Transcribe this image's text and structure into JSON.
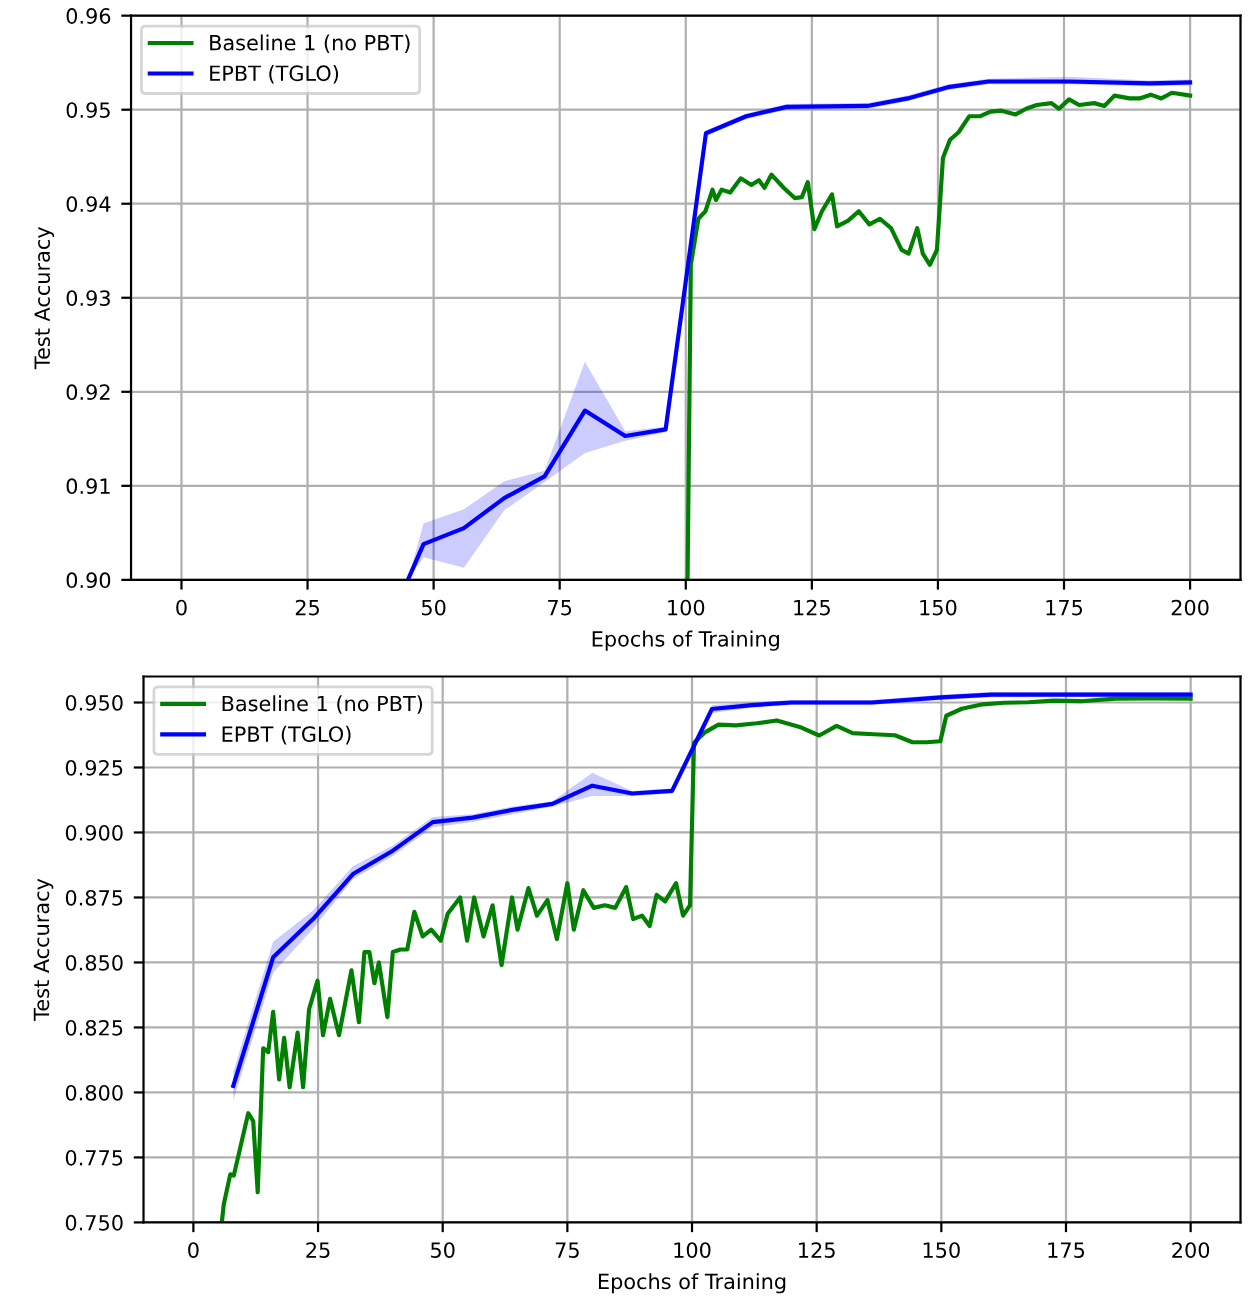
{
  "chart_data": [
    {
      "type": "line",
      "xlabel": "Epochs of Training",
      "ylabel": "Test Accuracy",
      "xlim": [
        -10,
        210
      ],
      "ylim": [
        0.9,
        0.96
      ],
      "xticks": [
        0,
        25,
        50,
        75,
        100,
        125,
        150,
        175,
        200
      ],
      "yticks": [
        {
          "value": 0.9,
          "label": "0.90"
        },
        {
          "value": 0.91,
          "label": "0.91"
        },
        {
          "value": 0.92,
          "label": "0.92"
        },
        {
          "value": 0.93,
          "label": "0.93"
        },
        {
          "value": 0.94,
          "label": "0.94"
        },
        {
          "value": 0.95,
          "label": "0.95"
        },
        {
          "value": 0.96,
          "label": "0.96"
        }
      ],
      "grid": true,
      "legend": "top left",
      "line_style": "solid",
      "marker": "none",
      "series": [
        {
          "name": "Baseline 1 (no PBT)",
          "color": "#008000",
          "x": [
            100.35,
            101,
            102.5,
            103.9,
            105.3,
            106,
            107.1,
            108.8,
            110.9,
            113,
            114.5,
            115.6,
            117,
            119.4,
            121.6,
            123,
            124.2,
            125.5,
            127,
            129,
            130,
            132.2,
            134.3,
            136.4,
            138.5,
            140.7,
            142.8,
            144.2,
            145.9,
            147,
            148.4,
            149.8,
            151,
            152.4,
            154.1,
            156.2,
            158.3,
            160.4,
            162.6,
            165.4,
            167.5,
            169.6,
            172.5,
            174,
            176,
            178,
            181,
            183,
            185,
            188,
            190,
            192.2,
            194.3,
            196.4,
            200
          ],
          "values": [
            0.9,
            0.9335,
            0.9384,
            0.9392,
            0.9415,
            0.9404,
            0.9415,
            0.9412,
            0.9427,
            0.942,
            0.9425,
            0.9417,
            0.9431,
            0.9417,
            0.9406,
            0.9407,
            0.9423,
            0.9373,
            0.9392,
            0.941,
            0.9376,
            0.9382,
            0.9392,
            0.9378,
            0.9384,
            0.9374,
            0.9351,
            0.9347,
            0.9374,
            0.9347,
            0.9335,
            0.9351,
            0.9449,
            0.9468,
            0.9476,
            0.9493,
            0.9493,
            0.9498,
            0.9499,
            0.9495,
            0.9501,
            0.9505,
            0.9507,
            0.9501,
            0.9511,
            0.9505,
            0.9507,
            0.9504,
            0.9515,
            0.9512,
            0.9512,
            0.9516,
            0.9512,
            0.9518,
            0.9515
          ]
        },
        {
          "name": "EPBT (TGLO)",
          "color": "#0000ff",
          "x": [
            44.9,
            48,
            56,
            64,
            72,
            80,
            88,
            96,
            104,
            112,
            120,
            136,
            144,
            152,
            160,
            176,
            192,
            200
          ],
          "values": [
            0.9,
            0.9038,
            0.9055,
            0.9087,
            0.911,
            0.918,
            0.9153,
            0.916,
            0.9475,
            0.9493,
            0.9503,
            0.9504,
            0.9512,
            0.9524,
            0.953,
            0.953,
            0.9528,
            0.9529
          ],
          "lower": [
            0.9,
            0.9024,
            0.9013,
            0.9074,
            0.9104,
            0.9135,
            0.9148,
            0.9157,
            0.9472,
            0.949,
            0.95,
            0.9501,
            0.9509,
            0.9521,
            0.9527,
            0.9527,
            0.9525,
            0.9526
          ],
          "upper": [
            0.9,
            0.906,
            0.9075,
            0.9105,
            0.9116,
            0.9232,
            0.9158,
            0.9163,
            0.9478,
            0.9496,
            0.9506,
            0.9507,
            0.9515,
            0.9527,
            0.9533,
            0.9535,
            0.9531,
            0.9532
          ]
        }
      ]
    },
    {
      "type": "line",
      "xlabel": "Epochs of Training",
      "ylabel": "Test Accuracy",
      "xlim": [
        -10,
        210
      ],
      "ylim": [
        0.75,
        0.96
      ],
      "xticks": [
        0,
        25,
        50,
        75,
        100,
        125,
        150,
        175,
        200
      ],
      "yticks": [
        {
          "value": 0.75,
          "label": "0.750"
        },
        {
          "value": 0.775,
          "label": "0.775"
        },
        {
          "value": 0.8,
          "label": "0.800"
        },
        {
          "value": 0.825,
          "label": "0.825"
        },
        {
          "value": 0.85,
          "label": "0.850"
        },
        {
          "value": 0.875,
          "label": "0.875"
        },
        {
          "value": 0.9,
          "label": "0.900"
        },
        {
          "value": 0.925,
          "label": "0.925"
        },
        {
          "value": 0.95,
          "label": "0.950"
        }
      ],
      "grid": true,
      "legend": "top left",
      "line_style": "solid",
      "marker": "none",
      "series": [
        {
          "name": "Baseline 1 (no PBT)",
          "color": "#008000",
          "x": [
            5.7,
            6.1,
            7.4,
            8.1,
            11,
            12,
            12.9,
            14,
            15,
            16,
            17.2,
            18.2,
            19.3,
            20.9,
            22,
            23.2,
            24.9,
            26,
            27.4,
            29.2,
            31.7,
            33.2,
            34.3,
            35.3,
            36.3,
            37.2,
            38.9,
            40,
            41.5,
            42.9,
            44.3,
            46,
            47.7,
            49.6,
            51,
            53.5,
            54.9,
            56.3,
            58.2,
            60,
            61.8,
            63.9,
            65,
            67.2,
            68.9,
            71,
            72.9,
            75,
            76.3,
            78.2,
            80.3,
            82.5,
            84.6,
            86.8,
            88.2,
            90,
            91.5,
            92.9,
            94.6,
            96.8,
            98.2,
            99.6,
            100.4,
            102.5,
            105.3,
            108.8,
            113,
            117,
            121.6,
            125.5,
            129,
            132.2,
            136.4,
            140.7,
            144.2,
            147,
            149.8,
            151,
            154.1,
            158.3,
            162.6,
            167.5,
            172.5,
            178,
            185,
            192.2,
            200
          ],
          "values": [
            0.75,
            0.757,
            0.7685,
            0.768,
            0.792,
            0.789,
            0.7616,
            0.817,
            0.8155,
            0.831,
            0.805,
            0.821,
            0.802,
            0.823,
            0.802,
            0.832,
            0.843,
            0.822,
            0.836,
            0.822,
            0.847,
            0.827,
            0.854,
            0.854,
            0.842,
            0.85,
            0.829,
            0.854,
            0.855,
            0.855,
            0.8695,
            0.86,
            0.8626,
            0.8584,
            0.8687,
            0.875,
            0.8584,
            0.875,
            0.86,
            0.872,
            0.849,
            0.875,
            0.8626,
            0.8786,
            0.868,
            0.874,
            0.859,
            0.8805,
            0.8626,
            0.8778,
            0.871,
            0.872,
            0.871,
            0.879,
            0.8667,
            0.868,
            0.864,
            0.876,
            0.8735,
            0.8805,
            0.868,
            0.872,
            0.9345,
            0.9384,
            0.9415,
            0.9412,
            0.942,
            0.9431,
            0.9406,
            0.9373,
            0.941,
            0.9382,
            0.9378,
            0.9374,
            0.9347,
            0.9347,
            0.9351,
            0.9449,
            0.9476,
            0.9493,
            0.9499,
            0.9501,
            0.9507,
            0.9505,
            0.9515,
            0.9516,
            0.9515
          ]
        },
        {
          "name": "EPBT (TGLO)",
          "color": "#0000ff",
          "x": [
            8,
            16,
            24,
            32,
            40,
            48,
            56,
            64,
            72,
            80,
            88,
            96,
            104,
            112,
            120,
            136,
            150,
            160,
            200
          ],
          "values": [
            0.8025,
            0.852,
            0.8667,
            0.884,
            0.893,
            0.904,
            0.9057,
            0.9087,
            0.911,
            0.918,
            0.915,
            0.916,
            0.9475,
            0.949,
            0.95,
            0.95,
            0.952,
            0.953,
            0.953
          ],
          "lower": [
            0.797,
            0.846,
            0.863,
            0.882,
            0.891,
            0.902,
            0.904,
            0.907,
            0.91,
            0.914,
            0.914,
            0.915,
            0.946,
            0.948,
            0.949,
            0.949,
            0.951,
            0.952,
            0.952
          ],
          "upper": [
            0.808,
            0.858,
            0.87,
            0.887,
            0.895,
            0.906,
            0.907,
            0.91,
            0.912,
            0.923,
            0.916,
            0.917,
            0.949,
            0.95,
            0.951,
            0.951,
            0.953,
            0.954,
            0.954
          ]
        }
      ]
    }
  ]
}
